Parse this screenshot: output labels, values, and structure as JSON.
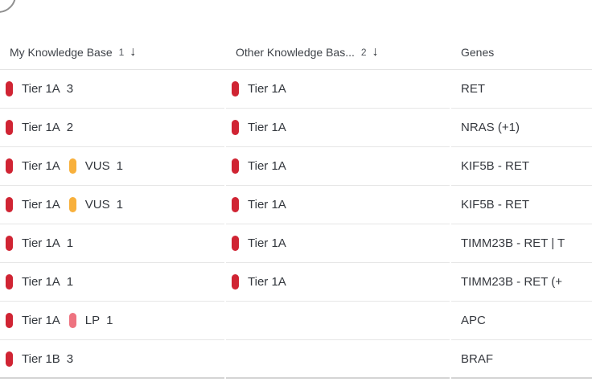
{
  "colors": {
    "tier_red": "#d02433",
    "vus_amber": "#f8b03c",
    "lp_pink": "#ee7380",
    "divider": "#e6e6e6",
    "bottom_border": "#d4d4d4",
    "header_text": "#3f4349",
    "cell_text": "#36393f"
  },
  "header": {
    "columns": [
      {
        "label": "My Knowledge Base",
        "sort_index": "1",
        "sort_arrow": "↓"
      },
      {
        "label": "Other Knowledge Bas...",
        "sort_index": "2",
        "sort_arrow": "↓"
      },
      {
        "label": "Genes",
        "sort_index": "",
        "sort_arrow": ""
      }
    ]
  },
  "rows": [
    {
      "my_kb": [
        {
          "color": "#d02433",
          "label": "Tier 1A",
          "count": "3"
        }
      ],
      "other_kb": [
        {
          "color": "#d02433",
          "label": "Tier 1A",
          "count": ""
        }
      ],
      "genes": "RET"
    },
    {
      "my_kb": [
        {
          "color": "#d02433",
          "label": "Tier 1A",
          "count": "2"
        }
      ],
      "other_kb": [
        {
          "color": "#d02433",
          "label": "Tier 1A",
          "count": ""
        }
      ],
      "genes": "NRAS (+1)"
    },
    {
      "my_kb": [
        {
          "color": "#d02433",
          "label": "Tier 1A",
          "count": ""
        },
        {
          "color": "#f8b03c",
          "label": "VUS",
          "count": "1"
        }
      ],
      "other_kb": [
        {
          "color": "#d02433",
          "label": "Tier 1A",
          "count": ""
        }
      ],
      "genes": "KIF5B - RET"
    },
    {
      "my_kb": [
        {
          "color": "#d02433",
          "label": "Tier 1A",
          "count": ""
        },
        {
          "color": "#f8b03c",
          "label": "VUS",
          "count": "1"
        }
      ],
      "other_kb": [
        {
          "color": "#d02433",
          "label": "Tier 1A",
          "count": ""
        }
      ],
      "genes": "KIF5B - RET"
    },
    {
      "my_kb": [
        {
          "color": "#d02433",
          "label": "Tier 1A",
          "count": "1"
        }
      ],
      "other_kb": [
        {
          "color": "#d02433",
          "label": "Tier 1A",
          "count": ""
        }
      ],
      "genes": "TIMM23B - RET | T"
    },
    {
      "my_kb": [
        {
          "color": "#d02433",
          "label": "Tier 1A",
          "count": "1"
        }
      ],
      "other_kb": [
        {
          "color": "#d02433",
          "label": "Tier 1A",
          "count": ""
        }
      ],
      "genes": "TIMM23B - RET (+"
    },
    {
      "my_kb": [
        {
          "color": "#d02433",
          "label": "Tier 1A",
          "count": ""
        },
        {
          "color": "#ee7380",
          "label": "LP",
          "count": "1"
        }
      ],
      "other_kb": [],
      "genes": "APC"
    },
    {
      "my_kb": [
        {
          "color": "#d02433",
          "label": "Tier 1B",
          "count": "3"
        }
      ],
      "other_kb": [],
      "genes": "BRAF"
    }
  ]
}
